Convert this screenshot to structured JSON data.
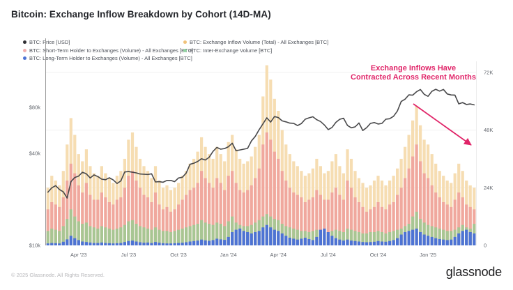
{
  "title": "Bitcoin: Exchange Inflow Breakdown by Cohort (14D-MA)",
  "annotation": {
    "line1": "Exchange Inflows Have",
    "line2": "Contracted Across Recent Months",
    "color": "#e02468"
  },
  "footer": {
    "copyright": "© 2025 Glassnode. All Rights Reserved.",
    "brand": "glassnode"
  },
  "legend": {
    "items": [
      {
        "label": "BTC: Price [USD]",
        "color": "#2f2f33"
      },
      {
        "label": "BTC: Exchange Inflow Volume (Total) - All Exchanges [BTC]",
        "color": "#f0c27b"
      },
      {
        "label": "BTC: Short-Term Holder to Exchanges (Volume) - All Exchanges [BTC]",
        "color": "#f2aeae"
      },
      {
        "label": "BTC: Inter-Exchange Volume [BTC]",
        "color": "#8fd3a0"
      },
      {
        "label": "BTC: Long-Term Holder to Exchanges (Volume) - All Exchanges [BTC]",
        "color": "#4d73d4"
      }
    ]
  },
  "chart_data": {
    "type": "bar",
    "subtype": "overlaid-bars-with-line",
    "x_range": "Feb 2023 – Mar 2025 (weekly samples)",
    "x_tick_labels": [
      "Apr '23",
      "Jul '23",
      "Oct '23",
      "Jan '24",
      "Apr '24",
      "Jul '24",
      "Oct '24",
      "Jan '25"
    ],
    "x_tick_indices": [
      8,
      21,
      34,
      47,
      60,
      73,
      86,
      99
    ],
    "left_axis": {
      "scale": "log",
      "unit": "USD",
      "ticks": [
        {
          "label": "$10k",
          "value": 10
        },
        {
          "label": "$40k",
          "value": 40
        },
        {
          "label": "$80k",
          "value": 80
        }
      ]
    },
    "right_axis": {
      "scale": "linear",
      "unit": "BTC",
      "ticks": [
        {
          "label": "0",
          "value": 0
        },
        {
          "label": "24K",
          "value": 24
        },
        {
          "label": "48K",
          "value": 48
        },
        {
          "label": "72K",
          "value": 72
        }
      ],
      "max": 76
    },
    "grid": "faint horizontal at right-axis ticks",
    "legend_position": "top, two columns",
    "series": [
      {
        "id": "total",
        "name": "BTC: Exchange Inflow Volume (Total) - All Exchanges [BTC]",
        "render": "bars",
        "axis": "right",
        "color": "#f6ddb2",
        "values": [
          24,
          29,
          27,
          25,
          31,
          42,
          53,
          46,
          38,
          35,
          40,
          33,
          30,
          29,
          33,
          30,
          28,
          26,
          29,
          31,
          36,
          44,
          47,
          41,
          36,
          33,
          31,
          28,
          33,
          27,
          24,
          25,
          23,
          24,
          26,
          29,
          31,
          34,
          36,
          39,
          45,
          41,
          38,
          36,
          41,
          38,
          35,
          43,
          46,
          40,
          36,
          34,
          35,
          37,
          41,
          46,
          62,
          75,
          69,
          61,
          56,
          48,
          42,
          38,
          35,
          33,
          31,
          29,
          30,
          32,
          36,
          33,
          30,
          31,
          35,
          38,
          33,
          30,
          40,
          36,
          31,
          28,
          26,
          24,
          25,
          27,
          29,
          27,
          25,
          27,
          29,
          32,
          36,
          41,
          46,
          52,
          58,
          50,
          44,
          42,
          38,
          34,
          31,
          29,
          27,
          26,
          30,
          34,
          31,
          27,
          25,
          24
        ]
      },
      {
        "id": "sth",
        "name": "BTC: Short-Term Holder to Exchanges (Volume) - All Exchanges [BTC]",
        "render": "bars",
        "axis": "right",
        "color": "#f0a89e",
        "values": [
          15,
          18,
          17,
          16,
          20,
          27,
          34,
          30,
          25,
          22,
          26,
          21,
          19,
          19,
          22,
          20,
          18,
          17,
          19,
          20,
          24,
          29,
          31,
          27,
          24,
          21,
          20,
          18,
          22,
          17,
          15,
          16,
          14,
          15,
          17,
          19,
          21,
          23,
          24,
          26,
          31,
          28,
          26,
          24,
          28,
          26,
          23,
          29,
          31,
          26,
          23,
          22,
          23,
          25,
          28,
          32,
          42,
          47,
          44,
          39,
          36,
          31,
          27,
          24,
          22,
          21,
          20,
          18,
          19,
          20,
          23,
          21,
          19,
          19,
          22,
          24,
          21,
          19,
          27,
          24,
          20,
          18,
          16,
          14,
          15,
          16,
          18,
          16,
          15,
          17,
          18,
          21,
          24,
          28,
          32,
          37,
          42,
          35,
          30,
          28,
          25,
          22,
          20,
          18,
          17,
          16,
          19,
          22,
          20,
          17,
          16,
          15
        ]
      },
      {
        "id": "inter",
        "name": "BTC: Inter-Exchange Volume [BTC]",
        "render": "bars",
        "axis": "right",
        "color": "#a8c693",
        "values": [
          6,
          7,
          6.5,
          6,
          8,
          11,
          15,
          12,
          10,
          9,
          9.5,
          8,
          7.5,
          7,
          8,
          7.5,
          7,
          6.5,
          7,
          7.5,
          8.5,
          10,
          10.5,
          9,
          8,
          7.5,
          7,
          6.5,
          7.5,
          6.5,
          6,
          6,
          5.5,
          6,
          6.5,
          7,
          7.5,
          8,
          8.5,
          9,
          10.5,
          9.5,
          9,
          8.5,
          9.5,
          9,
          8,
          10,
          12,
          9.5,
          8.5,
          8,
          8,
          8.5,
          9.5,
          10.5,
          12,
          13,
          12,
          11,
          10.5,
          9,
          8,
          7.5,
          7,
          6.5,
          6,
          6,
          5.5,
          6,
          6.5,
          6,
          5.5,
          5.5,
          6,
          6.5,
          6,
          5.5,
          7,
          6.5,
          6,
          5.5,
          5,
          5,
          5.5,
          5.5,
          6,
          5.5,
          5,
          5.5,
          6,
          6.5,
          7,
          8,
          9,
          12,
          14,
          11,
          9.5,
          8.5,
          8,
          7.5,
          7,
          6.5,
          6,
          6,
          6.5,
          7.5,
          8.5,
          7.5,
          7,
          9
        ]
      },
      {
        "id": "lth",
        "name": "BTC: Long-Term Holder to Exchanges (Volume) - All Exchanges [BTC]",
        "render": "bars",
        "axis": "right",
        "color": "#4d73d4",
        "values": [
          0.8,
          1,
          0.9,
          0.8,
          1.5,
          2.5,
          4,
          3,
          2.2,
          1.6,
          1.4,
          1.2,
          1,
          1,
          1.2,
          1,
          0.9,
          0.8,
          0.9,
          1,
          1.4,
          1.8,
          2,
          1.6,
          1.3,
          1.1,
          1.2,
          1,
          1.4,
          1.1,
          0.9,
          0.8,
          0.8,
          0.9,
          1,
          1.1,
          1.3,
          1.6,
          1.8,
          2,
          2.4,
          2.1,
          1.9,
          2.2,
          2.8,
          2.5,
          2.3,
          3.5,
          5.5,
          6.5,
          7,
          6,
          5.5,
          5,
          5.5,
          6,
          7.5,
          8.5,
          7.5,
          6.5,
          6,
          5,
          4,
          3.2,
          2.8,
          2.4,
          2.8,
          3.2,
          2.6,
          2.2,
          3.5,
          6.5,
          7,
          5.5,
          4,
          3,
          2.4,
          2,
          2.4,
          2,
          1.8,
          1.6,
          1.4,
          1.3,
          1.4,
          1.5,
          1.8,
          1.6,
          1.5,
          1.8,
          2.2,
          3,
          4.5,
          5.5,
          6,
          6.5,
          7,
          5.5,
          4.5,
          4,
          3.5,
          3,
          2.6,
          2.4,
          2.2,
          2.4,
          3.5,
          5,
          6,
          6.5,
          5.5,
          5
        ]
      },
      {
        "id": "price",
        "name": "BTC: Price [USD]",
        "render": "line",
        "axis": "left",
        "color": "#48484a",
        "values": [
          22.3,
          23.8,
          24.6,
          23.2,
          22.4,
          20.4,
          26.1,
          27.8,
          28.4,
          30.1,
          29.4,
          27.6,
          28.9,
          28.2,
          27.1,
          26.9,
          27.7,
          26.8,
          25.4,
          26.4,
          30.2,
          30.4,
          30.1,
          29.8,
          29.3,
          29.2,
          29.1,
          29.4,
          26,
          26.1,
          25.9,
          26.6,
          26.6,
          26.1,
          27.6,
          27.9,
          29.7,
          33.9,
          34.5,
          35.4,
          36.9,
          36.2,
          37.7,
          41.2,
          43.7,
          42.6,
          43,
          44.2,
          46.6,
          41.6,
          42.1,
          42.6,
          43.1,
          48.2,
          51.6,
          57,
          62.4,
          68.3,
          64.1,
          69.6,
          68.6,
          65.2,
          64.3,
          63.1,
          62.9,
          60.8,
          62.6,
          66.9,
          68.3,
          69.4,
          66.4,
          64.6,
          61.3,
          57.2,
          59.1,
          63.8,
          66.8,
          67.9,
          60.9,
          58.8,
          59.6,
          63.2,
          56.4,
          58.9,
          62.8,
          63.6,
          62.2,
          62.8,
          66.9,
          67.4,
          69.9,
          75.6,
          87.3,
          90.4,
          96.5,
          96.1,
          101.2,
          104.6,
          97.3,
          94.4,
          101.8,
          104.9,
          102.1,
          104.7,
          97.8,
          96.4,
          96.2,
          84.3,
          86,
          83.5,
          84.2,
          83
        ]
      }
    ]
  }
}
